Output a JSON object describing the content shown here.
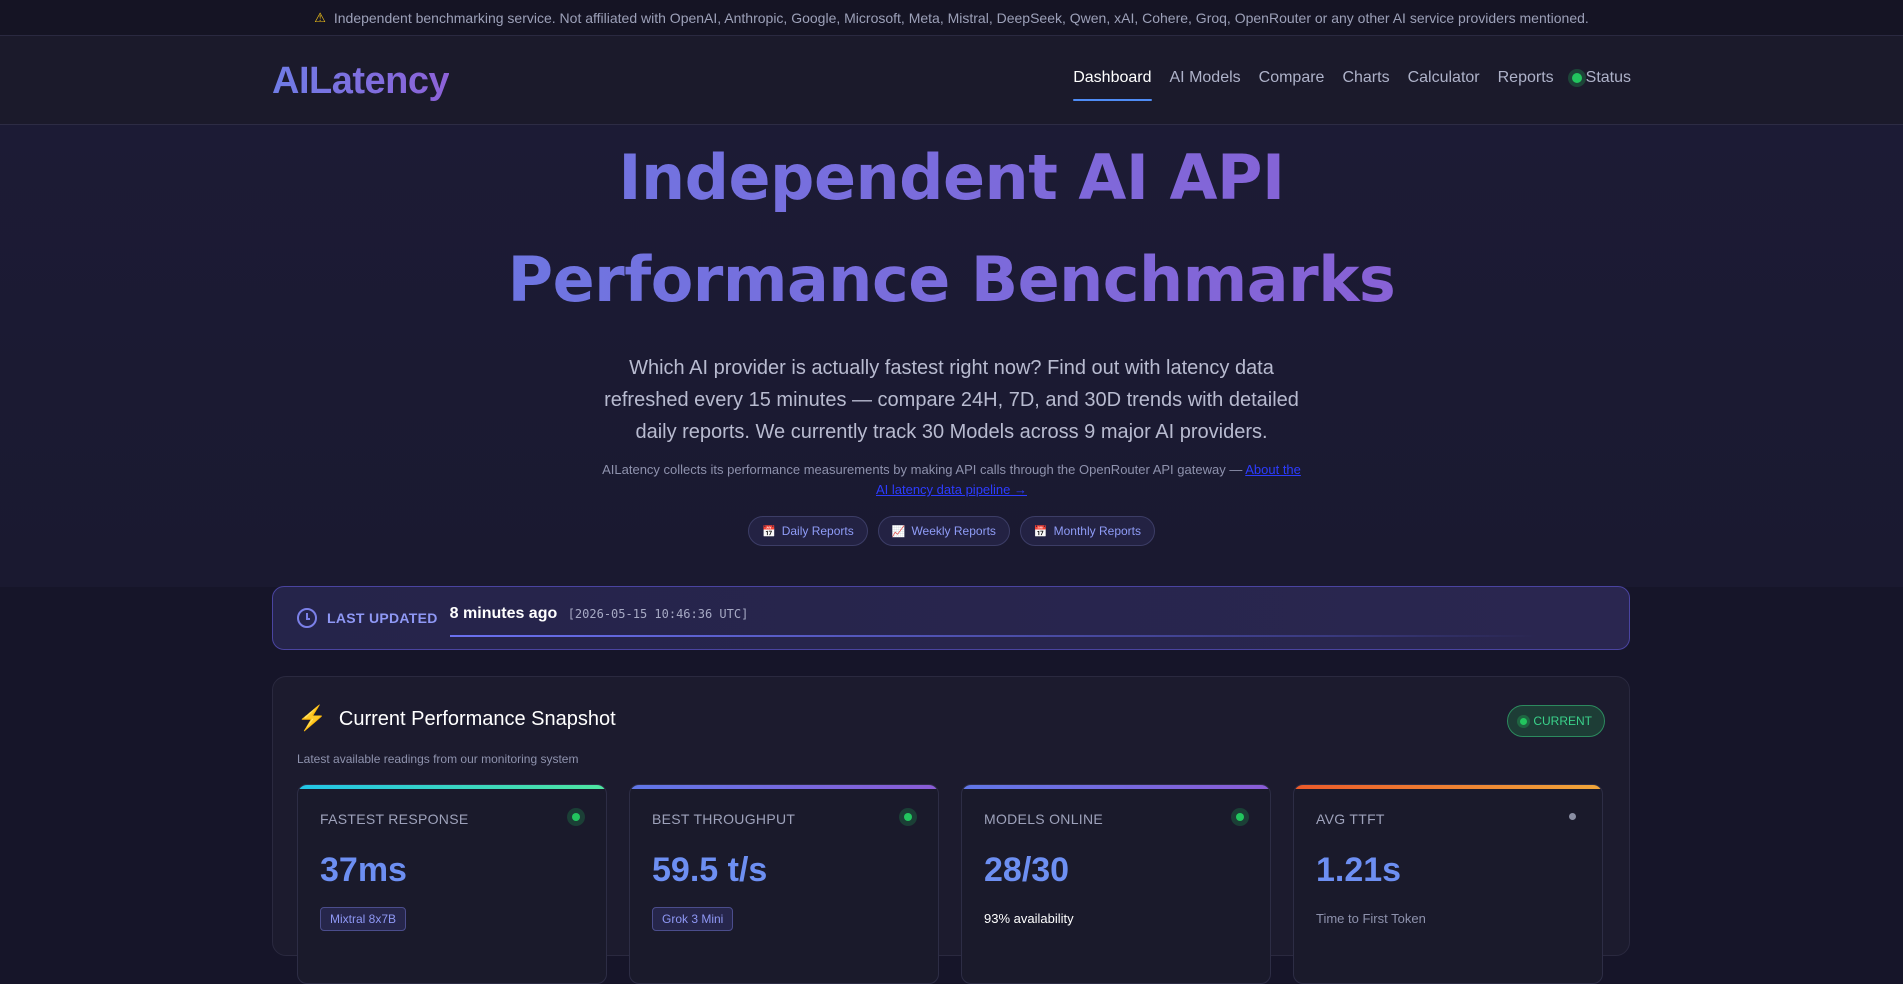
{
  "disclaimer": {
    "icon": "warning-icon",
    "text": "Independent benchmarking service. Not affiliated with OpenAI, Anthropic, Google, Microsoft, Meta, Mistral, DeepSeek, Qwen, xAI, Cohere, Groq, OpenRouter or any other AI service providers mentioned."
  },
  "header": {
    "logo": "AILatency",
    "nav": {
      "dashboard": "Dashboard",
      "ai_models": "AI Models",
      "compare": "Compare",
      "charts": "Charts",
      "calculator": "Calculator",
      "reports": "Reports",
      "status": "Status"
    },
    "active": "Dashboard"
  },
  "hero": {
    "title": "Independent AI API Performance Benchmarks",
    "lead": "Which AI provider is actually fastest right now? Find out with latency data refreshed every 15 minutes — compare 24H, 7D, and 30D trends with detailed daily reports. We currently track 30 Models across 9 major AI providers.",
    "sub_text": "AILatency collects its performance measurements by making API calls through the OpenRouter API gateway —",
    "sub_link": "About the AI latency data pipeline →",
    "pills": {
      "daily": "Daily Reports",
      "weekly": "Weekly Reports",
      "monthly": "Monthly Reports"
    }
  },
  "last_updated": {
    "label": "LAST UPDATED",
    "ago": "8 minutes ago",
    "timestamp": "[2026-05-15 10:46:36 UTC]"
  },
  "snapshot": {
    "title": "Current Performance Snapshot",
    "description": "Latest available readings from our monitoring system",
    "badge": "CURRENT",
    "cards": {
      "fastest": {
        "label": "FASTEST RESPONSE",
        "value": "37ms",
        "chip": "Mixtral 8x7B"
      },
      "throughput": {
        "label": "BEST THROUGHPUT",
        "value": "59.5 t/s",
        "chip": "Grok 3 Mini"
      },
      "online": {
        "label": "MODELS ONLINE",
        "value": "28/30",
        "note": "93% availability"
      },
      "ttft": {
        "label": "AVG TTFT",
        "value": "1.21s",
        "note": "Time to First Token"
      }
    }
  },
  "colors": {
    "accent_blue": "#6d8ff2",
    "status_green": "#22c55e",
    "gradient_start": "#6b78e3",
    "gradient_end": "#8b5fd4"
  }
}
